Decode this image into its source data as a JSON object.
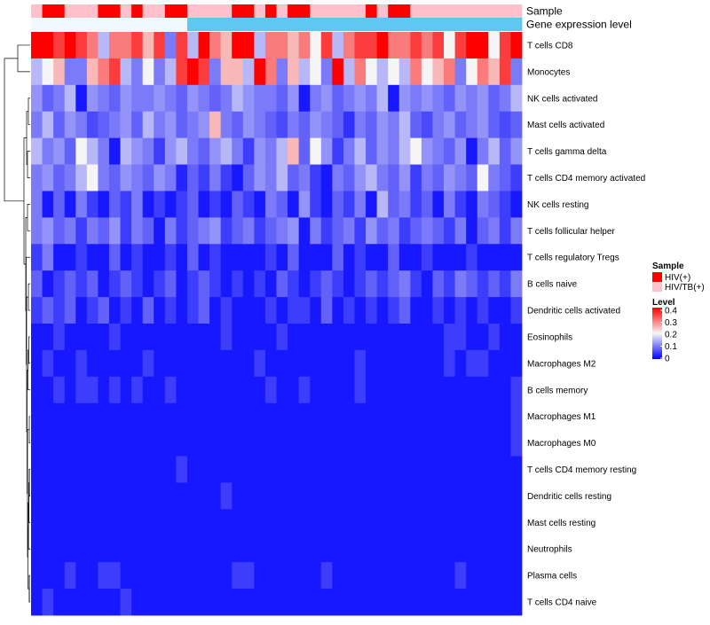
{
  "chart_data": {
    "type": "heatmap",
    "title": "",
    "annotation_tracks": [
      {
        "name": "Sample",
        "values": [
          1,
          0,
          0,
          1,
          1,
          1,
          0,
          0,
          1,
          0,
          1,
          1,
          0,
          0,
          1,
          1,
          1,
          1,
          0,
          0,
          1,
          0,
          1,
          0,
          0,
          1,
          1,
          1,
          1,
          1,
          0,
          1,
          0,
          0,
          1,
          1,
          1,
          1,
          1,
          1,
          1,
          1,
          1,
          1
        ]
      },
      {
        "name": "Gene expression level",
        "values": [
          0,
          0,
          0,
          0,
          0,
          0,
          0,
          0,
          0,
          0,
          0,
          0,
          0,
          0,
          1,
          1,
          1,
          1,
          1,
          1,
          1,
          1,
          1,
          1,
          1,
          1,
          1,
          1,
          1,
          1,
          1,
          1,
          1,
          1,
          1,
          1,
          1,
          1,
          1,
          1,
          1,
          1,
          1,
          1
        ]
      }
    ],
    "sample_groups": [
      {
        "name": "HIV(+)",
        "color": "#ff0000"
      },
      {
        "name": "HIV/TB(+)",
        "color": "#ffc0cb"
      }
    ],
    "expression_colors": {
      "low": "#f0f8ff",
      "high": "#5ec8f0"
    },
    "rows": [
      {
        "label": "T cells CD8",
        "values": [
          0.4,
          0.4,
          0.35,
          0.4,
          0.35,
          0.3,
          0.15,
          0.3,
          0.3,
          0.35,
          0.25,
          0.35,
          0.1,
          0.35,
          0.15,
          0.4,
          0.3,
          0.25,
          0.4,
          0.4,
          0.15,
          0.3,
          0.3,
          0.25,
          0.3,
          0.2,
          0.35,
          0.15,
          0.3,
          0.35,
          0.35,
          0.4,
          0.3,
          0.3,
          0.35,
          0.3,
          0.35,
          0.2,
          0.35,
          0.4,
          0.4,
          0.2,
          0.35,
          0.4
        ]
      },
      {
        "label": "Monocytes",
        "values": [
          0.15,
          0.2,
          0.25,
          0.1,
          0.1,
          0.25,
          0.3,
          0.35,
          0.15,
          0.1,
          0.2,
          0.1,
          0.15,
          0.35,
          0.4,
          0.35,
          0.1,
          0.25,
          0.25,
          0.15,
          0.4,
          0.3,
          0.1,
          0.25,
          0.15,
          0.2,
          0.1,
          0.4,
          0.15,
          0.3,
          0.2,
          0.15,
          0.2,
          0.15,
          0.3,
          0.2,
          0.25,
          0.3,
          0.1,
          0.2,
          0.3,
          0.25,
          0.35,
          0.1
        ]
      },
      {
        "label": "NK cells activated",
        "values": [
          0.12,
          0.08,
          0.1,
          0.15,
          0.02,
          0.12,
          0.1,
          0.08,
          0.12,
          0.1,
          0.1,
          0.12,
          0.1,
          0.08,
          0.12,
          0.1,
          0.08,
          0.1,
          0.15,
          0.12,
          0.1,
          0.1,
          0.08,
          0.12,
          0.02,
          0.1,
          0.12,
          0.08,
          0.1,
          0.12,
          0.1,
          0.15,
          0.02,
          0.12,
          0.1,
          0.12,
          0.1,
          0.08,
          0.12,
          0.1,
          0.12,
          0.08,
          0.1,
          0.15
        ]
      },
      {
        "label": "Mast cells activated",
        "values": [
          0.1,
          0.15,
          0.08,
          0.12,
          0.1,
          0.06,
          0.08,
          0.1,
          0.12,
          0.08,
          0.15,
          0.1,
          0.12,
          0.08,
          0.1,
          0.12,
          0.25,
          0.1,
          0.08,
          0.12,
          0.1,
          0.08,
          0.06,
          0.1,
          0.08,
          0.12,
          0.1,
          0.08,
          0.04,
          0.1,
          0.08,
          0.12,
          0.1,
          0.15,
          0.08,
          0.06,
          0.1,
          0.12,
          0.08,
          0.1,
          0.12,
          0.08,
          0.06,
          0.08
        ]
      },
      {
        "label": "T cells gamma delta",
        "values": [
          0.15,
          0.1,
          0.12,
          0.08,
          0.2,
          0.15,
          0.1,
          0.02,
          0.15,
          0.12,
          0.1,
          0.05,
          0.12,
          0.15,
          0.1,
          0.08,
          0.12,
          0.15,
          0.1,
          0.05,
          0.12,
          0.1,
          0.15,
          0.25,
          0.08,
          0.2,
          0.12,
          0.05,
          0.1,
          0.15,
          0.08,
          0.12,
          0.1,
          0.15,
          0.2,
          0.12,
          0.1,
          0.08,
          0.12,
          0.02,
          0.1,
          0.15,
          0.08,
          0.12
        ]
      },
      {
        "label": "T cells CD4 memory activated",
        "values": [
          0.1,
          0.12,
          0.08,
          0.1,
          0.15,
          0.2,
          0.1,
          0.08,
          0.12,
          0.1,
          0.08,
          0.12,
          0.1,
          0.03,
          0.08,
          0.05,
          0.1,
          0.05,
          0.02,
          0.08,
          0.12,
          0.1,
          0.15,
          0.08,
          0.1,
          0.05,
          0.02,
          0.1,
          0.08,
          0.12,
          0.15,
          0.1,
          0.08,
          0.12,
          0.05,
          0.1,
          0.08,
          0.12,
          0.1,
          0.08,
          0.2,
          0.1,
          0.08,
          0.05
        ]
      },
      {
        "label": "NK cells resting",
        "values": [
          0.1,
          0.02,
          0.08,
          0.02,
          0.1,
          0.05,
          0.02,
          0.08,
          0.05,
          0.1,
          0.02,
          0.05,
          0.02,
          0.05,
          0.08,
          0.02,
          0.05,
          0.02,
          0.08,
          0.05,
          0.02,
          0.1,
          0.08,
          0.02,
          0.12,
          0.05,
          0.02,
          0.08,
          0.05,
          0.1,
          0.02,
          0.15,
          0.08,
          0.1,
          0.05,
          0.08,
          0.02,
          0.1,
          0.05,
          0.02,
          0.1,
          0.08,
          0.05,
          0.02
        ]
      },
      {
        "label": "T cells follicular helper",
        "values": [
          0.1,
          0.12,
          0.08,
          0.1,
          0.05,
          0.1,
          0.08,
          0.12,
          0.05,
          0.1,
          0.08,
          0.02,
          0.1,
          0.05,
          0.08,
          0.1,
          0.12,
          0.05,
          0.08,
          0.1,
          0.05,
          0.08,
          0.1,
          0.12,
          0.02,
          0.1,
          0.05,
          0.08,
          0.1,
          0.05,
          0.12,
          0.08,
          0.1,
          0.05,
          0.08,
          0.1,
          0.08,
          0.05,
          0.1,
          0.02,
          0.08,
          0.1,
          0.05,
          0.1
        ]
      },
      {
        "label": "T cells regulatory  Tregs",
        "values": [
          0.05,
          0.1,
          0.02,
          0.02,
          0.05,
          0.02,
          0.02,
          0.08,
          0.02,
          0.05,
          0.02,
          0.02,
          0.05,
          0.02,
          0.08,
          0.02,
          0.05,
          0.02,
          0.02,
          0.02,
          0.02,
          0.05,
          0.02,
          0.08,
          0.02,
          0.02,
          0.02,
          0.08,
          0.02,
          0.05,
          0.02,
          0.02,
          0.08,
          0.02,
          0.02,
          0.05,
          0.02,
          0.02,
          0.02,
          0.05,
          0.02,
          0.02,
          0.02,
          0.02
        ]
      },
      {
        "label": "B cells naive",
        "values": [
          0.08,
          0.02,
          0.05,
          0.08,
          0.05,
          0.08,
          0.02,
          0.05,
          0.08,
          0.05,
          0.02,
          0.05,
          0.08,
          0.02,
          0.05,
          0.08,
          0.05,
          0.02,
          0.05,
          0.02,
          0.05,
          0.02,
          0.08,
          0.05,
          0.02,
          0.05,
          0.08,
          0.05,
          0.02,
          0.05,
          0.08,
          0.05,
          0.08,
          0.1,
          0.05,
          0.02,
          0.08,
          0.05,
          0.1,
          0.08,
          0.05,
          0.08,
          0.05,
          0.1
        ]
      },
      {
        "label": "Dendritic cells activated",
        "values": [
          0.05,
          0.08,
          0.05,
          0.08,
          0.02,
          0.05,
          0.08,
          0.02,
          0.05,
          0.02,
          0.08,
          0.02,
          0.05,
          0.02,
          0.05,
          0.08,
          0.02,
          0.05,
          0.02,
          0.02,
          0.02,
          0.05,
          0.02,
          0.05,
          0.05,
          0.02,
          0.08,
          0.02,
          0.05,
          0.02,
          0.05,
          0.02,
          0.05,
          0.08,
          0.02,
          0.02,
          0.05,
          0.02,
          0.05,
          0.02,
          0.05,
          0.02,
          0.02,
          0.05
        ]
      },
      {
        "label": "Eosinophils",
        "values": [
          0.02,
          0.02,
          0.05,
          0.02,
          0.02,
          0.02,
          0.02,
          0.05,
          0.02,
          0.02,
          0.02,
          0.02,
          0.02,
          0.02,
          0.02,
          0.02,
          0.02,
          0.05,
          0.02,
          0.02,
          0.02,
          0.02,
          0.05,
          0.02,
          0.02,
          0.02,
          0.02,
          0.02,
          0.02,
          0.02,
          0.02,
          0.02,
          0.02,
          0.02,
          0.02,
          0.02,
          0.02,
          0.05,
          0.05,
          0.02,
          0.02,
          0.05,
          0.02,
          0.02
        ]
      },
      {
        "label": "Macrophages M2",
        "values": [
          0.02,
          0.05,
          0.02,
          0.02,
          0.05,
          0.02,
          0.02,
          0.02,
          0.02,
          0.02,
          0.05,
          0.02,
          0.02,
          0.02,
          0.02,
          0.02,
          0.02,
          0.02,
          0.02,
          0.02,
          0.05,
          0.02,
          0.02,
          0.02,
          0.02,
          0.02,
          0.02,
          0.02,
          0.02,
          0.05,
          0.02,
          0.02,
          0.02,
          0.02,
          0.02,
          0.02,
          0.02,
          0.05,
          0.02,
          0.05,
          0.05,
          0.02,
          0.02,
          0.02
        ]
      },
      {
        "label": "B cells memory",
        "values": [
          0.02,
          0.02,
          0.05,
          0.02,
          0.05,
          0.05,
          0.02,
          0.05,
          0.02,
          0.05,
          0.02,
          0.02,
          0.05,
          0.02,
          0.02,
          0.02,
          0.02,
          0.02,
          0.02,
          0.02,
          0.02,
          0.05,
          0.02,
          0.02,
          0.05,
          0.02,
          0.02,
          0.02,
          0.02,
          0.05,
          0.02,
          0.02,
          0.02,
          0.02,
          0.02,
          0.02,
          0.02,
          0.02,
          0.02,
          0.02,
          0.02,
          0.02,
          0.02,
          0.05
        ]
      },
      {
        "label": "Macrophages M1",
        "values": [
          0.02,
          0.02,
          0.02,
          0.02,
          0.02,
          0.02,
          0.02,
          0.02,
          0.02,
          0.02,
          0.02,
          0.02,
          0.02,
          0.02,
          0.02,
          0.02,
          0.02,
          0.02,
          0.02,
          0.02,
          0.02,
          0.02,
          0.02,
          0.02,
          0.02,
          0.02,
          0.02,
          0.02,
          0.02,
          0.02,
          0.02,
          0.02,
          0.02,
          0.02,
          0.02,
          0.02,
          0.02,
          0.02,
          0.02,
          0.02,
          0.02,
          0.02,
          0.02,
          0.05
        ]
      },
      {
        "label": "Macrophages M0",
        "values": [
          0.02,
          0.02,
          0.02,
          0.02,
          0.02,
          0.02,
          0.02,
          0.02,
          0.02,
          0.02,
          0.02,
          0.02,
          0.02,
          0.02,
          0.02,
          0.02,
          0.02,
          0.02,
          0.02,
          0.02,
          0.02,
          0.02,
          0.02,
          0.02,
          0.02,
          0.02,
          0.02,
          0.02,
          0.02,
          0.02,
          0.02,
          0.02,
          0.02,
          0.02,
          0.02,
          0.02,
          0.02,
          0.02,
          0.02,
          0.02,
          0.02,
          0.02,
          0.02,
          0.05
        ]
      },
      {
        "label": "T cells CD4 memory resting",
        "values": [
          0.02,
          0.02,
          0.02,
          0.02,
          0.02,
          0.02,
          0.02,
          0.02,
          0.02,
          0.02,
          0.02,
          0.02,
          0.02,
          0.05,
          0.02,
          0.02,
          0.02,
          0.02,
          0.02,
          0.02,
          0.02,
          0.02,
          0.02,
          0.02,
          0.02,
          0.02,
          0.02,
          0.02,
          0.02,
          0.02,
          0.02,
          0.02,
          0.02,
          0.02,
          0.02,
          0.02,
          0.02,
          0.02,
          0.02,
          0.02,
          0.02,
          0.02,
          0.02,
          0.02
        ]
      },
      {
        "label": "Dendritic cells resting",
        "values": [
          0.02,
          0.02,
          0.02,
          0.02,
          0.02,
          0.02,
          0.02,
          0.02,
          0.02,
          0.02,
          0.02,
          0.02,
          0.02,
          0.02,
          0.02,
          0.02,
          0.02,
          0.05,
          0.02,
          0.02,
          0.02,
          0.02,
          0.02,
          0.02,
          0.02,
          0.02,
          0.02,
          0.02,
          0.02,
          0.02,
          0.02,
          0.02,
          0.02,
          0.02,
          0.02,
          0.02,
          0.02,
          0.02,
          0.02,
          0.02,
          0.02,
          0.02,
          0.02,
          0.02
        ]
      },
      {
        "label": "Mast cells resting",
        "values": [
          0.02,
          0.02,
          0.02,
          0.02,
          0.02,
          0.02,
          0.02,
          0.02,
          0.02,
          0.02,
          0.02,
          0.02,
          0.02,
          0.02,
          0.02,
          0.02,
          0.02,
          0.02,
          0.02,
          0.02,
          0.02,
          0.02,
          0.02,
          0.02,
          0.02,
          0.02,
          0.02,
          0.02,
          0.02,
          0.02,
          0.02,
          0.02,
          0.02,
          0.02,
          0.02,
          0.02,
          0.02,
          0.02,
          0.02,
          0.02,
          0.02,
          0.02,
          0.02,
          0.02
        ]
      },
      {
        "label": "Neutrophils",
        "values": [
          0.02,
          0.02,
          0.02,
          0.02,
          0.02,
          0.02,
          0.02,
          0.02,
          0.02,
          0.02,
          0.02,
          0.02,
          0.02,
          0.02,
          0.02,
          0.02,
          0.02,
          0.02,
          0.02,
          0.02,
          0.02,
          0.02,
          0.02,
          0.02,
          0.02,
          0.02,
          0.02,
          0.02,
          0.02,
          0.02,
          0.02,
          0.02,
          0.02,
          0.02,
          0.02,
          0.02,
          0.02,
          0.02,
          0.02,
          0.02,
          0.02,
          0.02,
          0.02,
          0.02
        ]
      },
      {
        "label": "Plasma cells",
        "values": [
          0.02,
          0.02,
          0.02,
          0.05,
          0.02,
          0.02,
          0.05,
          0.05,
          0.02,
          0.02,
          0.02,
          0.02,
          0.02,
          0.02,
          0.02,
          0.02,
          0.02,
          0.02,
          0.05,
          0.05,
          0.02,
          0.02,
          0.02,
          0.02,
          0.02,
          0.02,
          0.05,
          0.02,
          0.02,
          0.02,
          0.02,
          0.02,
          0.02,
          0.02,
          0.02,
          0.02,
          0.02,
          0.02,
          0.05,
          0.02,
          0.02,
          0.02,
          0.02,
          0.02
        ]
      },
      {
        "label": "T cells CD4 naive",
        "values": [
          0.02,
          0.05,
          0.02,
          0.02,
          0.02,
          0.02,
          0.02,
          0.02,
          0.05,
          0.02,
          0.02,
          0.02,
          0.02,
          0.02,
          0.02,
          0.02,
          0.02,
          0.02,
          0.02,
          0.02,
          0.02,
          0.02,
          0.02,
          0.02,
          0.02,
          0.02,
          0.02,
          0.02,
          0.02,
          0.02,
          0.02,
          0.02,
          0.02,
          0.02,
          0.02,
          0.02,
          0.02,
          0.02,
          0.02,
          0.02,
          0.02,
          0.02,
          0.02,
          0.02
        ]
      }
    ],
    "color_scale": {
      "title": "Level",
      "min": 0,
      "max": 0.4,
      "colors": [
        "#0000ff",
        "#f5f5f5",
        "#ff0000"
      ],
      "ticks": [
        "0.4",
        "0.3",
        "0.2",
        "0.1",
        "0"
      ]
    },
    "legend": {
      "title": "Sample",
      "placement": "right"
    }
  }
}
